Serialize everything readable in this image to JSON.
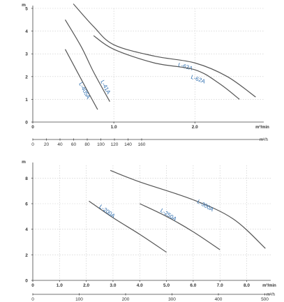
{
  "chart_data": [
    {
      "type": "line",
      "y_unit": "m",
      "x_unit_primary": "m³/min",
      "x_unit_secondary": "m³/h",
      "ylim": [
        0,
        5
      ],
      "y_ticks": [
        "0",
        "1",
        "2",
        "3",
        "4",
        "5"
      ],
      "x_primary_ticks": [
        "0",
        "1.0",
        "2.0"
      ],
      "x_primary_range": [
        0,
        2.85
      ],
      "x_secondary_ticks": [
        "0",
        "20",
        "40",
        "60",
        "80",
        "100",
        "120",
        "140",
        "160"
      ],
      "grid": true,
      "series": [
        {
          "name": "L-405A",
          "x": [
            0.4,
            0.55,
            0.7,
            0.8
          ],
          "y": [
            3.2,
            2.2,
            1.2,
            0.55
          ]
        },
        {
          "name": "L-41A",
          "x": [
            0.4,
            0.6,
            0.75,
            0.95
          ],
          "y": [
            4.5,
            3.3,
            2.2,
            0.9
          ]
        },
        {
          "name": "L-63A",
          "x": [
            0.5,
            0.75,
            1.0,
            1.5,
            2.0,
            2.4,
            2.75
          ],
          "y": [
            5.2,
            4.2,
            3.4,
            2.9,
            2.6,
            2.0,
            1.1
          ]
        },
        {
          "name": "L-62A",
          "x": [
            0.75,
            1.0,
            1.5,
            2.0,
            2.3,
            2.55
          ],
          "y": [
            3.8,
            3.2,
            2.6,
            2.3,
            1.7,
            1.0
          ]
        }
      ]
    },
    {
      "type": "line",
      "y_unit": "m",
      "x_unit_primary": "m³/min",
      "x_unit_secondary": "m³/h",
      "ylim": [
        0,
        9
      ],
      "y_ticks": [
        "0",
        "2",
        "4",
        "6",
        "8"
      ],
      "x_primary_ticks": [
        "0",
        "1.0",
        "2.0",
        "3.0",
        "4.0",
        "5.0",
        "6.0",
        "7.0",
        "8.0"
      ],
      "x_primary_range": [
        0,
        8.9
      ],
      "x_secondary_ticks": [
        "0",
        "100",
        "200",
        "300",
        "400",
        "500"
      ],
      "grid": true,
      "series": [
        {
          "name": "L-200A",
          "x": [
            2.1,
            3.0,
            4.0,
            5.0
          ],
          "y": [
            6.2,
            4.9,
            3.6,
            2.2
          ]
        },
        {
          "name": "L-250A",
          "x": [
            4.0,
            5.0,
            6.0,
            7.0
          ],
          "y": [
            6.0,
            5.0,
            3.8,
            2.4
          ]
        },
        {
          "name": "L-300A",
          "x": [
            2.9,
            4.0,
            6.0,
            7.5,
            8.7
          ],
          "y": [
            8.6,
            7.7,
            6.3,
            4.8,
            2.5
          ]
        }
      ]
    }
  ]
}
